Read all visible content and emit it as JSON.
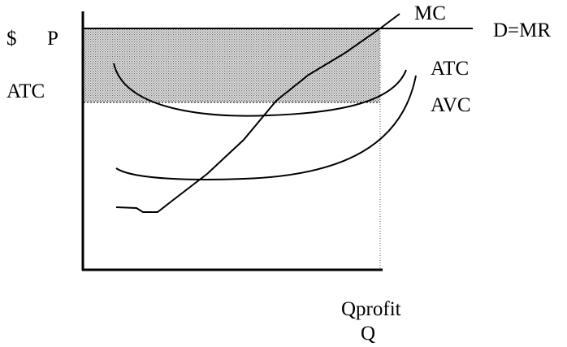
{
  "labels": {
    "dollar": "$",
    "price": "P",
    "atc_axis": "ATC",
    "mc": "MC",
    "demand": "D=MR",
    "atc_curve": "ATC",
    "avc_curve": "AVC",
    "qprofit": "Qprofit",
    "q_axis": "Q"
  }
}
